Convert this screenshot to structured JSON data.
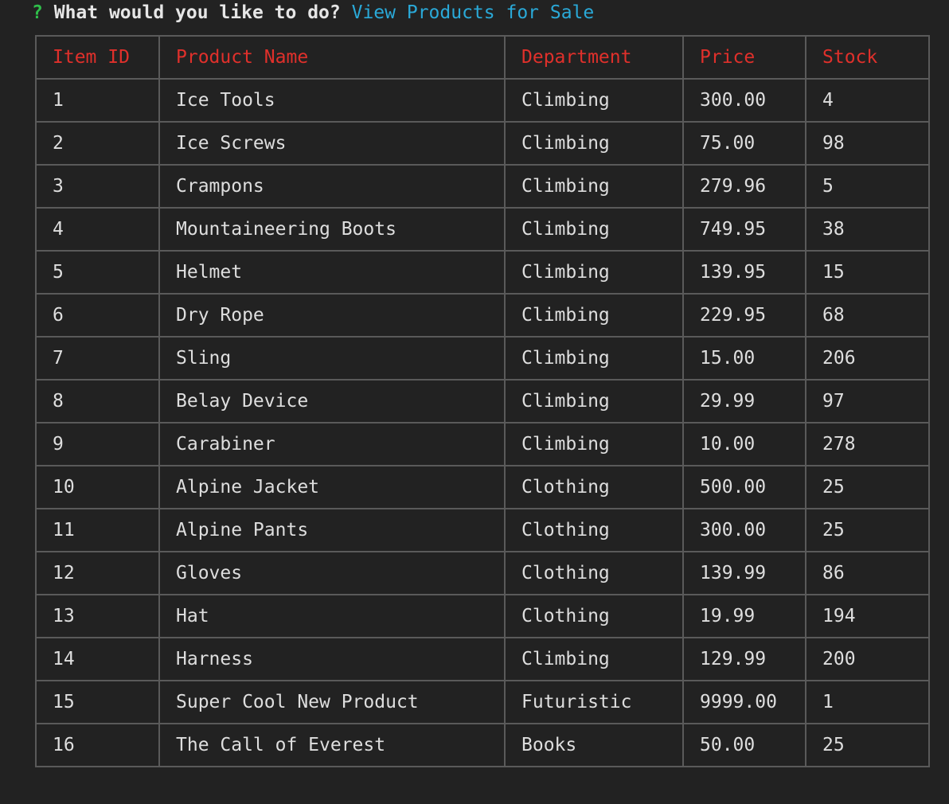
{
  "prompt": {
    "marker": "?",
    "question": "What would you like to do?",
    "answer": "View Products for Sale"
  },
  "colors": {
    "background": "#222222",
    "header_text": "#e0302b",
    "prompt_marker": "#2fbf4a",
    "answer_text": "#2aa9d8",
    "border": "#5a5a5a"
  },
  "table": {
    "headers": [
      "Item ID",
      "Product Name",
      "Department",
      "Price",
      "Stock"
    ],
    "rows": [
      [
        "1",
        "Ice Tools",
        "Climbing",
        "300.00",
        "4"
      ],
      [
        "2",
        "Ice Screws",
        "Climbing",
        "75.00",
        "98"
      ],
      [
        "3",
        "Crampons",
        "Climbing",
        "279.96",
        "5"
      ],
      [
        "4",
        "Mountaineering Boots",
        "Climbing",
        "749.95",
        "38"
      ],
      [
        "5",
        "Helmet",
        "Climbing",
        "139.95",
        "15"
      ],
      [
        "6",
        "Dry Rope",
        "Climbing",
        "229.95",
        "68"
      ],
      [
        "7",
        "Sling",
        "Climbing",
        "15.00",
        "206"
      ],
      [
        "8",
        "Belay Device",
        "Climbing",
        "29.99",
        "97"
      ],
      [
        "9",
        "Carabiner",
        "Climbing",
        "10.00",
        "278"
      ],
      [
        "10",
        "Alpine Jacket",
        "Clothing",
        "500.00",
        "25"
      ],
      [
        "11",
        "Alpine Pants",
        "Clothing",
        "300.00",
        "25"
      ],
      [
        "12",
        "Gloves",
        "Clothing",
        "139.99",
        "86"
      ],
      [
        "13",
        "Hat",
        "Clothing",
        "19.99",
        "194"
      ],
      [
        "14",
        "Harness",
        "Climbing",
        "129.99",
        "200"
      ],
      [
        "15",
        "Super Cool New Product",
        "Futuristic",
        "9999.00",
        "1"
      ],
      [
        "16",
        "The Call of Everest",
        "Books",
        "50.00",
        "25"
      ]
    ]
  }
}
